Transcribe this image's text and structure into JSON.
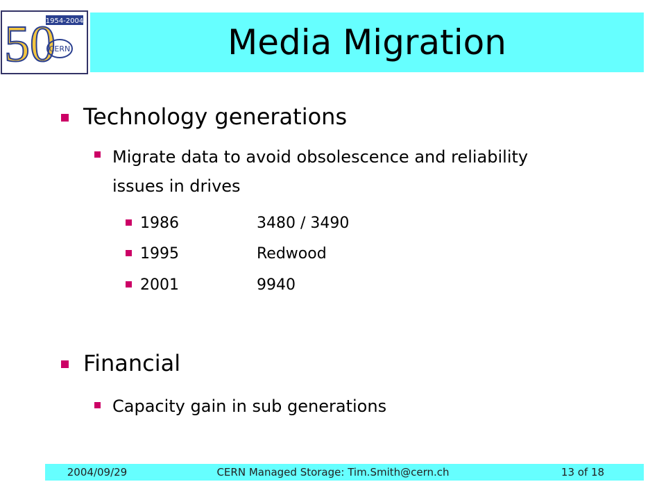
{
  "logo": {
    "years": "1954-2004",
    "number": "50",
    "name": "CERN"
  },
  "header": {
    "title": "Media Migration"
  },
  "body": {
    "sections": [
      {
        "text": "Technology generations",
        "items": [
          {
            "text": "Migrate data to avoid obsolescence and reliability issues in drives",
            "rows": [
              {
                "year": "1986",
                "drive": "3480 / 3490"
              },
              {
                "year": "1995",
                "drive": "Redwood"
              },
              {
                "year": "2001",
                "drive": "9940"
              }
            ]
          }
        ]
      },
      {
        "text": "Financial",
        "items": [
          {
            "text": "Capacity gain in sub generations"
          }
        ]
      }
    ]
  },
  "footer": {
    "date": "2004/09/29",
    "center": "CERN Managed Storage: Tim.Smith@cern.ch",
    "page": "13 of 18"
  }
}
